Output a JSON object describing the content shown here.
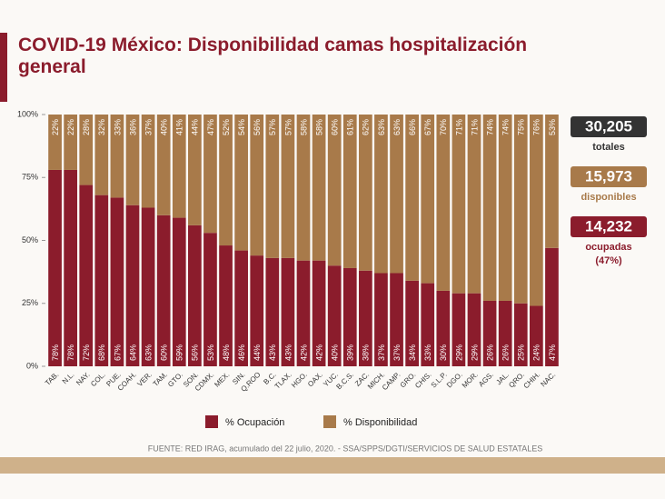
{
  "chart_data": {
    "type": "stacked_bar",
    "title": "COVID-19 México: Disponibilidad camas hospitalización general",
    "categories": [
      "TAB.",
      "N.L.",
      "NAY.",
      "COL.",
      "PUE.",
      "COAH.",
      "VER.",
      "TAM.",
      "GTO.",
      "SON.",
      "CDMX.",
      "MEX.",
      "SIN.",
      "Q.ROO",
      "B.C.",
      "TLAX.",
      "HGO.",
      "OAX.",
      "YUC.",
      "B.C.S.",
      "ZAC.",
      "MICH.",
      "CAMP.",
      "GRO.",
      "CHIS.",
      "S.L.P.",
      "DGO.",
      "MOR.",
      "AGS.",
      "JAL.",
      "QRO.",
      "CHIH.",
      "NAC."
    ],
    "series": [
      {
        "name": "% Ocupación",
        "color": "#8b1c2c",
        "values": [
          78,
          78,
          72,
          68,
          67,
          64,
          63,
          60,
          59,
          56,
          53,
          48,
          46,
          44,
          43,
          43,
          42,
          42,
          40,
          39,
          38,
          37,
          37,
          34,
          33,
          30,
          29,
          29,
          26,
          26,
          25,
          24,
          47
        ],
        "value_labels": [
          "78%",
          "78%",
          "72%",
          "68%",
          "67%",
          "64%",
          "63%",
          "60%",
          "59%",
          "56%",
          "53%",
          "48%",
          "46%",
          "44%",
          "43%",
          "43%",
          "42%",
          "42%",
          "40%",
          "39%",
          "38%",
          "37%",
          "37%",
          "34%",
          "33%",
          "30%",
          "29%",
          "29%",
          "26%",
          "26%",
          "25%",
          "24%",
          "47%"
        ]
      },
      {
        "name": "% Disponibilidad",
        "color": "#a87a4a",
        "values": [
          22,
          22,
          28,
          32,
          33,
          36,
          37,
          40,
          41,
          44,
          47,
          52,
          54,
          56,
          57,
          57,
          58,
          58,
          60,
          61,
          62,
          63,
          63,
          66,
          67,
          70,
          71,
          71,
          74,
          74,
          75,
          76,
          53
        ],
        "value_labels": [
          "22%",
          "22%",
          "28%",
          "32%",
          "33%",
          "36%",
          "37%",
          "40%",
          "41%",
          "44%",
          "47%",
          "52%",
          "54%",
          "56%",
          "57%",
          "57%",
          "58%",
          "58%",
          "60%",
          "61%",
          "62%",
          "63%",
          "63%",
          "66%",
          "67%",
          "70%",
          "71%",
          "71%",
          "74%",
          "74%",
          "75%",
          "76%",
          "53%"
        ]
      }
    ],
    "ylim": [
      0,
      100
    ],
    "yticks": [
      {
        "value": 0,
        "label": "0%"
      },
      {
        "value": 25,
        "label": "25%"
      },
      {
        "value": 50,
        "label": "50%"
      },
      {
        "value": 75,
        "label": "75%"
      },
      {
        "value": 100,
        "label": "100%"
      }
    ],
    "summary": [
      {
        "value": "30,205",
        "label": "totales"
      },
      {
        "value": "15,973",
        "label": "disponibles"
      },
      {
        "value": "14,232",
        "label": "ocupadas",
        "note": "(47%)"
      }
    ],
    "source": "FUENTE: RED IRAG, acumulado del 22 julio, 2020. -  SSA/SPPS/DGTI/SERVICIOS DE SALUD ESTATALES"
  }
}
